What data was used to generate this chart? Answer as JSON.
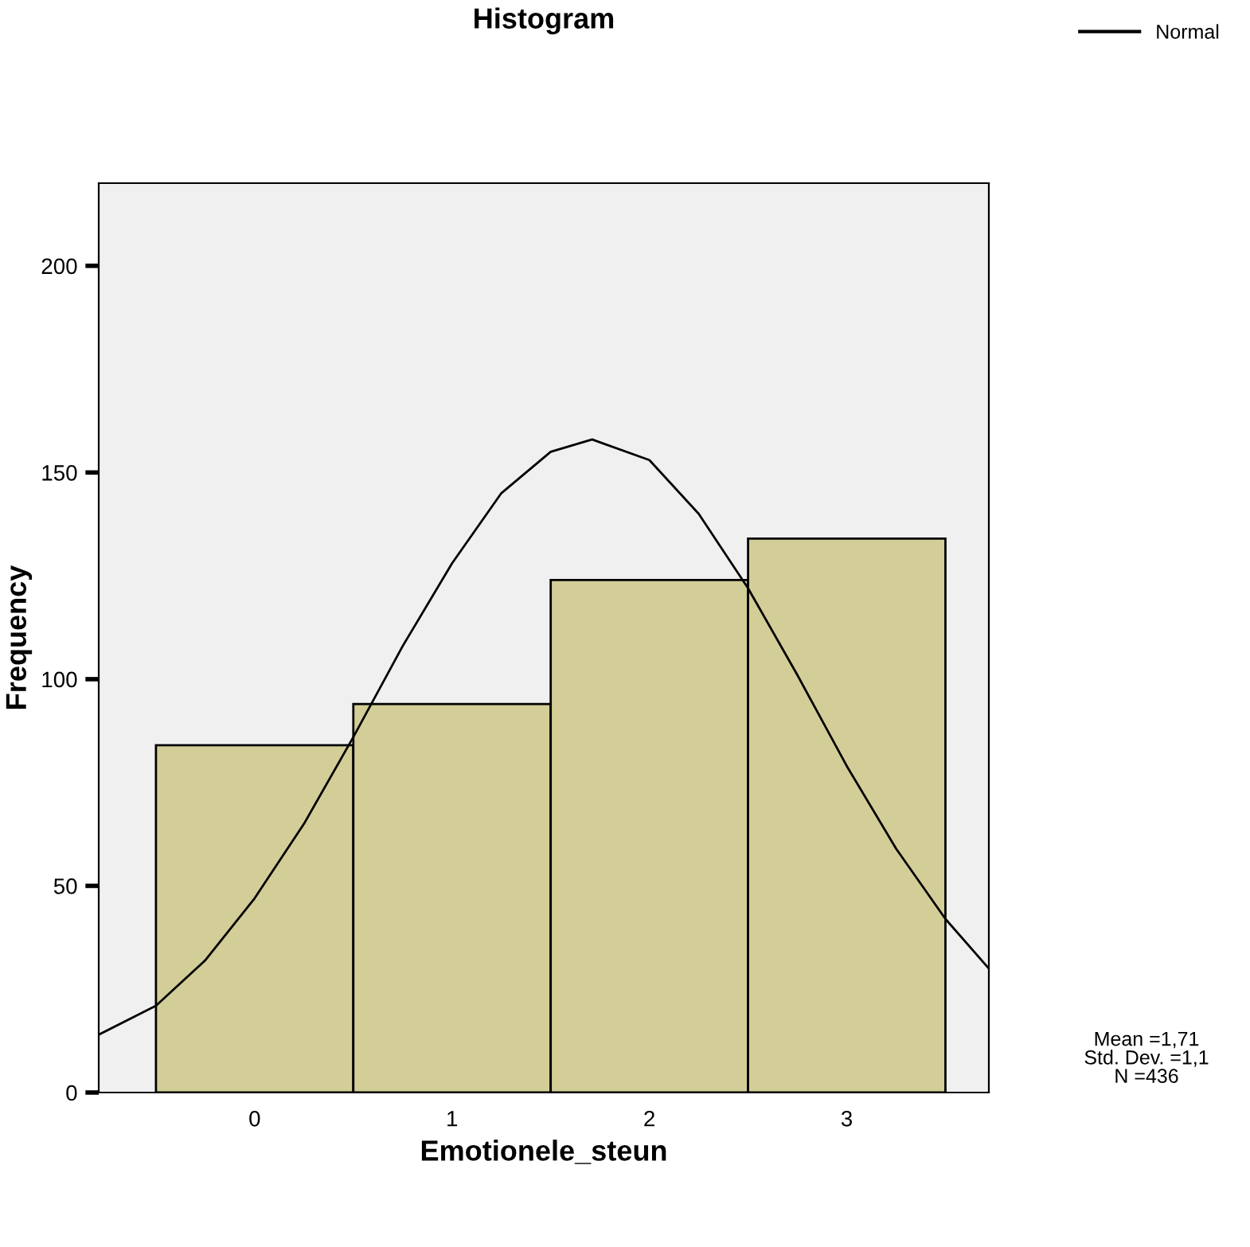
{
  "chart_data": {
    "type": "histogram",
    "title": "Histogram",
    "xlabel": "Emotionele_steun",
    "ylabel": "Frequency",
    "bins": [
      -0.5,
      0.5,
      1.5,
      2.5,
      3.5
    ],
    "series": [
      {
        "color": "#d3ce97",
        "values": [
          84,
          94,
          124,
          134
        ]
      },
      {
        "type": "line",
        "name": "Normal",
        "color": "#000000",
        "x": [
          -0.79,
          -0.5,
          -0.25,
          0,
          0.25,
          0.5,
          0.75,
          1,
          1.25,
          1.5,
          1.71,
          2,
          2.25,
          2.5,
          2.75,
          3,
          3.25,
          3.5,
          3.72
        ],
        "values": [
          14,
          21,
          32,
          47,
          65,
          86,
          108,
          128,
          145,
          155,
          158,
          153,
          140,
          122,
          101,
          79,
          59,
          42,
          30
        ]
      }
    ],
    "xlim": [
      -0.79,
      3.72
    ],
    "xticks": [
      0,
      1,
      2,
      3
    ],
    "ylim": [
      0,
      220
    ],
    "yticks": [
      0,
      50,
      100,
      150,
      200
    ],
    "grid": false,
    "legend": "top right",
    "marker": "none",
    "line_style": "solid",
    "annotations": [
      "Mean =1,71",
      "Std. Dev. =1,1",
      "N =436"
    ]
  }
}
